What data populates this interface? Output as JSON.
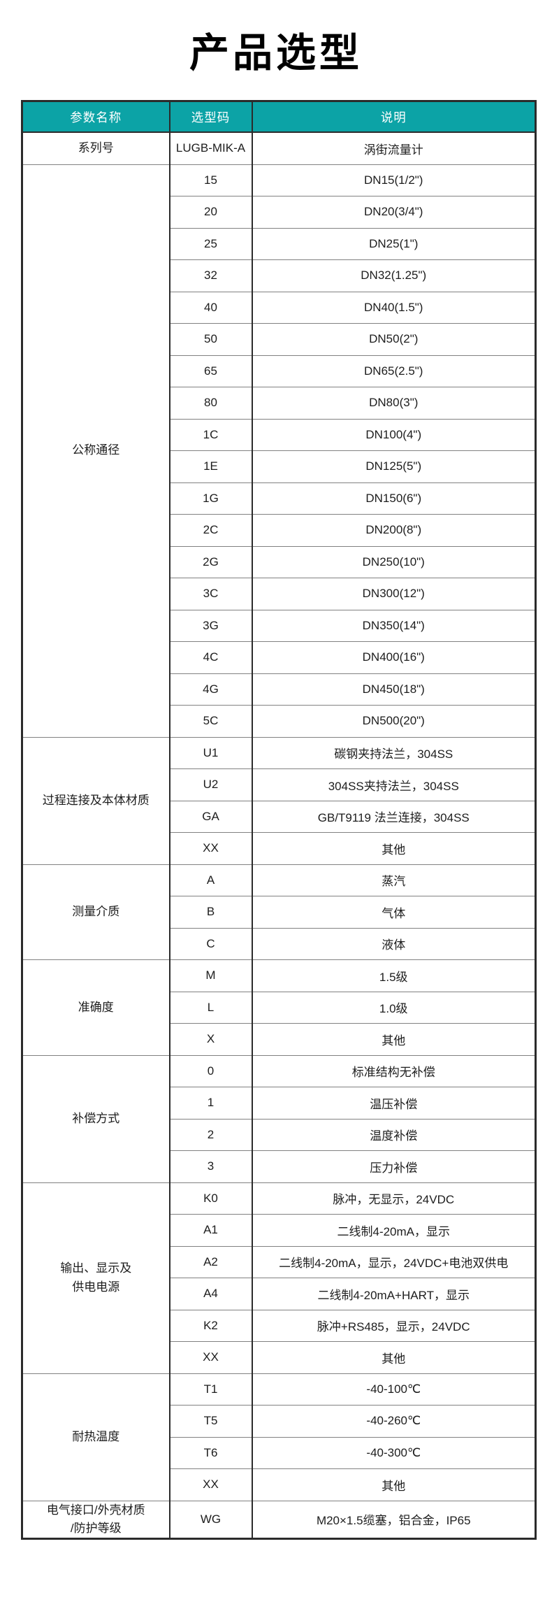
{
  "page": {
    "title": "产品选型"
  },
  "colors": {
    "header_bg": "#0ca3a6",
    "header_text": "#ffffff",
    "border_dark": "#2b2b2b",
    "grid_line": "#818181",
    "title_color": "#000000"
  },
  "table": {
    "headers": [
      "参数名称",
      "选型码",
      "说明"
    ],
    "groups": [
      {
        "name_lines": [
          "系列号"
        ],
        "rows": [
          {
            "code": "LUGB-MIK-A",
            "desc": "涡街流量计"
          }
        ]
      },
      {
        "name_lines": [
          "公称通径"
        ],
        "rows": [
          {
            "code": "15",
            "desc": "DN15(1/2\")"
          },
          {
            "code": "20",
            "desc": "DN20(3/4\")"
          },
          {
            "code": "25",
            "desc": "DN25(1\")"
          },
          {
            "code": "32",
            "desc": "DN32(1.25\")"
          },
          {
            "code": "40",
            "desc": "DN40(1.5\")"
          },
          {
            "code": "50",
            "desc": "DN50(2\")"
          },
          {
            "code": "65",
            "desc": "DN65(2.5\")"
          },
          {
            "code": "80",
            "desc": "DN80(3\")"
          },
          {
            "code": "1C",
            "desc": "DN100(4\")"
          },
          {
            "code": "1E",
            "desc": "DN125(5\")"
          },
          {
            "code": "1G",
            "desc": "DN150(6\")"
          },
          {
            "code": "2C",
            "desc": "DN200(8\")"
          },
          {
            "code": "2G",
            "desc": "DN250(10\")"
          },
          {
            "code": "3C",
            "desc": "DN300(12\")"
          },
          {
            "code": "3G",
            "desc": "DN350(14\")"
          },
          {
            "code": "4C",
            "desc": "DN400(16\")"
          },
          {
            "code": "4G",
            "desc": "DN450(18\")"
          },
          {
            "code": "5C",
            "desc": "DN500(20\")"
          }
        ]
      },
      {
        "name_lines": [
          "过程连接及本体材质"
        ],
        "rows": [
          {
            "code": "U1",
            "desc": "碳钢夹持法兰，304SS"
          },
          {
            "code": "U2",
            "desc": "304SS夹持法兰，304SS"
          },
          {
            "code": "GA",
            "desc": "GB/T9119 法兰连接，304SS"
          },
          {
            "code": "XX",
            "desc": "其他"
          }
        ]
      },
      {
        "name_lines": [
          "测量介质"
        ],
        "rows": [
          {
            "code": "A",
            "desc": "蒸汽"
          },
          {
            "code": "B",
            "desc": "气体"
          },
          {
            "code": "C",
            "desc": "液体"
          }
        ]
      },
      {
        "name_lines": [
          "准确度"
        ],
        "rows": [
          {
            "code": "M",
            "desc": "1.5级"
          },
          {
            "code": "L",
            "desc": "1.0级"
          },
          {
            "code": "X",
            "desc": "其他"
          }
        ]
      },
      {
        "name_lines": [
          "补偿方式"
        ],
        "rows": [
          {
            "code": "0",
            "desc": "标准结构无补偿"
          },
          {
            "code": "1",
            "desc": "温压补偿"
          },
          {
            "code": "2",
            "desc": "温度补偿"
          },
          {
            "code": "3",
            "desc": "压力补偿"
          }
        ]
      },
      {
        "name_lines": [
          "输出、显示及",
          "供电电源"
        ],
        "rows": [
          {
            "code": "K0",
            "desc": "脉冲，无显示，24VDC"
          },
          {
            "code": "A1",
            "desc": "二线制4-20mA，显示"
          },
          {
            "code": "A2",
            "desc": "二线制4-20mA，显示，24VDC+电池双供电"
          },
          {
            "code": "A4",
            "desc": "二线制4-20mA+HART，显示"
          },
          {
            "code": "K2",
            "desc": "脉冲+RS485，显示，24VDC"
          },
          {
            "code": "XX",
            "desc": "其他"
          }
        ]
      },
      {
        "name_lines": [
          "耐热温度"
        ],
        "rows": [
          {
            "code": "T1",
            "desc": "-40-100℃"
          },
          {
            "code": "T5",
            "desc": "-40-260℃"
          },
          {
            "code": "T6",
            "desc": "-40-300℃"
          },
          {
            "code": "XX",
            "desc": "其他"
          }
        ]
      },
      {
        "name_lines": [
          "电气接口/外壳材质",
          "/防护等级"
        ],
        "rows": [
          {
            "code": "WG",
            "desc": "M20×1.5缆塞，铝合金，IP65"
          }
        ]
      }
    ]
  }
}
